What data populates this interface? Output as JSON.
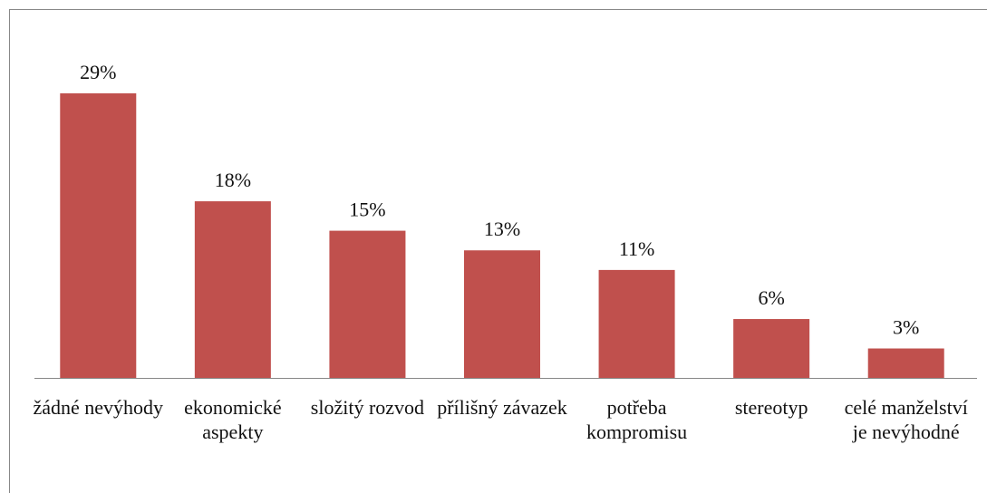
{
  "chart_data": {
    "type": "bar",
    "categories": [
      "žádné nevýhody",
      "ekonomické aspekty",
      "složitý rozvod",
      "přílišný závazek",
      "potřeba kompromisu",
      "stereotyp",
      "celé manželství je nevýhodné"
    ],
    "values": [
      29,
      18,
      15,
      13,
      11,
      6,
      3
    ],
    "value_labels": [
      "29%",
      "18%",
      "15%",
      "13%",
      "11%",
      "6%",
      "3%"
    ],
    "color": "#c0504d"
  }
}
